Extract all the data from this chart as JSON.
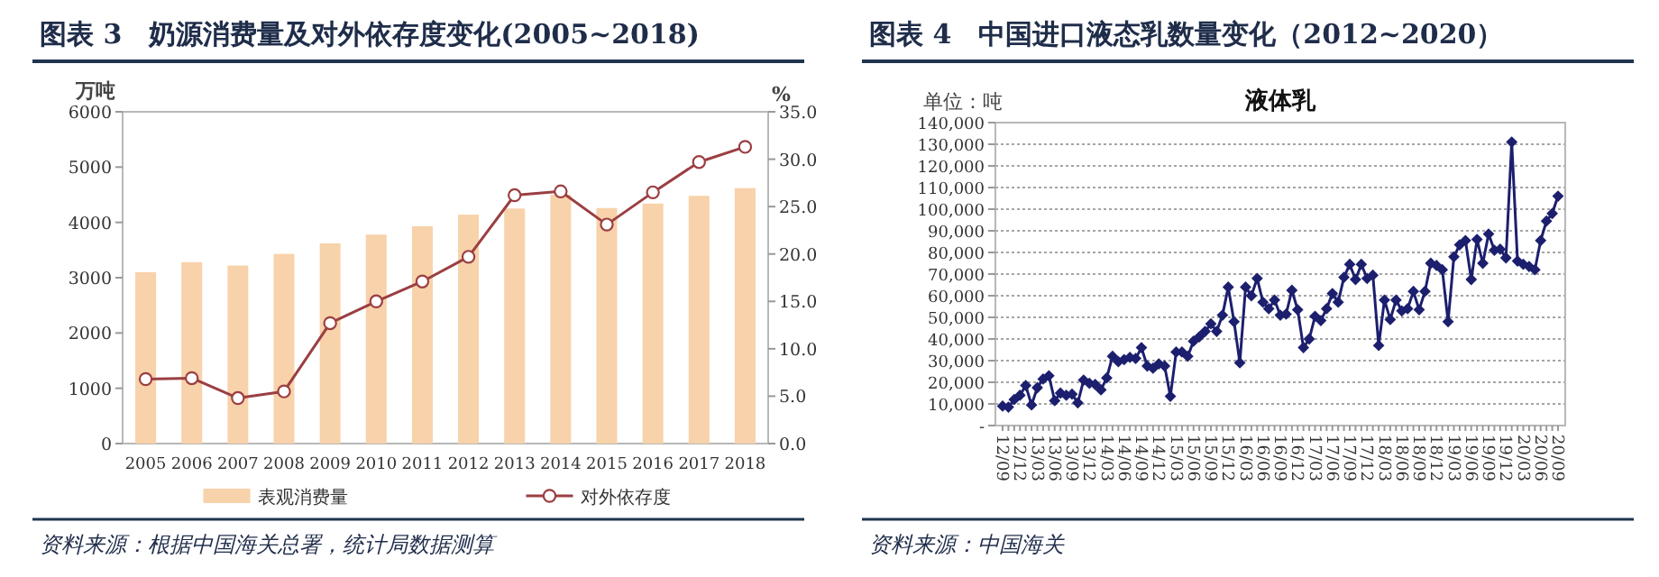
{
  "chart_data": [
    {
      "type": "bar",
      "title": "图表 3　奶源消费量及对外依存度变化(2005~2018)",
      "ylabel": "万吨",
      "y2label": "%",
      "categories": [
        "2005",
        "2006",
        "2007",
        "2008",
        "2009",
        "2010",
        "2011",
        "2012",
        "2013",
        "2014",
        "2015",
        "2016",
        "2017",
        "2018"
      ],
      "series": [
        {
          "name": "表观消费量",
          "color": "#f8d2aa",
          "values": [
            3100,
            3280,
            3220,
            3430,
            3620,
            3780,
            3930,
            4140,
            4250,
            4500,
            4260,
            4340,
            4480,
            4620
          ]
        },
        {
          "name": "对外依存度",
          "type": "line",
          "axis": "y2",
          "color": "#9b3f42",
          "marker": "circle",
          "values": [
            6.8,
            6.9,
            4.8,
            5.5,
            12.7,
            15.0,
            17.1,
            19.7,
            26.2,
            26.6,
            23.1,
            26.5,
            29.7,
            31.3
          ]
        }
      ],
      "ylim": [
        0,
        6000
      ],
      "yticks": [
        0,
        1000,
        2000,
        3000,
        4000,
        5000,
        6000
      ],
      "y2lim": [
        0,
        35
      ],
      "y2ticks": [
        {
          "value": 0,
          "label": "0.0"
        },
        {
          "value": 5,
          "label": "5.0"
        },
        {
          "value": 10,
          "label": "10.0"
        },
        {
          "value": 15,
          "label": "15.0"
        },
        {
          "value": 20,
          "label": "20.0"
        },
        {
          "value": 25,
          "label": "25.0"
        },
        {
          "value": 30,
          "label": "30.0"
        },
        {
          "value": 35,
          "label": "35.0"
        }
      ],
      "legend": "bottom",
      "annotations": [
        "资料来源：根据中国海关总署，统计局数据测算"
      ]
    },
    {
      "type": "line",
      "title": "图表 4　中国进口液态乳数量变化（2012~2020）",
      "subtitle": "液体乳",
      "ylabel": "单位：吨",
      "categories": [
        "12/09",
        null,
        null,
        "12/12",
        null,
        null,
        "13/03",
        null,
        null,
        "13/06",
        null,
        null,
        "13/09",
        null,
        null,
        "13/12",
        null,
        null,
        "14/03",
        null,
        null,
        "14/06",
        null,
        null,
        "14/09",
        null,
        null,
        "14/12",
        null,
        null,
        "15/03",
        null,
        null,
        "15/06",
        null,
        null,
        "15/09",
        null,
        null,
        "15/12",
        null,
        null,
        "16/03",
        null,
        null,
        "16/06",
        null,
        null,
        "16/09",
        null,
        null,
        "16/12",
        null,
        null,
        "17/03",
        null,
        null,
        "17/06",
        null,
        null,
        "17/09",
        null,
        null,
        "17/12",
        null,
        null,
        "18/03",
        null,
        null,
        "18/06",
        null,
        null,
        "18/09",
        null,
        null,
        "18/12",
        null,
        null,
        "19/03",
        null,
        null,
        "19/06",
        null,
        null,
        "19/09",
        null,
        null,
        "19/12",
        null,
        null,
        "20/03",
        null,
        null,
        "20/06",
        null,
        null,
        "20/09"
      ],
      "series": [
        {
          "color": "#1c1f6e",
          "values": [
            9000,
            8500,
            12000,
            14000,
            18500,
            9500,
            17500,
            21500,
            23000,
            11500,
            15000,
            14000,
            14500,
            10500,
            21000,
            19500,
            19000,
            16500,
            22000,
            32000,
            29500,
            30500,
            31500,
            31000,
            36000,
            27500,
            26500,
            28500,
            27500,
            13500,
            34000,
            34000,
            32000,
            39000,
            41000,
            43500,
            47000,
            43500,
            51000,
            64000,
            48000,
            29000,
            64000,
            60000,
            68000,
            57000,
            54000,
            58000,
            51000,
            51500,
            62500,
            53500,
            36000,
            40000,
            50500,
            48500,
            54000,
            61000,
            57000,
            68500,
            74500,
            67500,
            74500,
            68000,
            69500,
            37000,
            58000,
            49000,
            58000,
            53000,
            54000,
            62000,
            53500,
            62000,
            75000,
            74000,
            72000,
            48000,
            78000,
            83500,
            85500,
            67500,
            86000,
            75000,
            88500,
            81000,
            81500,
            77500,
            131000,
            76000,
            74500,
            73500,
            72000,
            85500,
            94500,
            98000,
            106000
          ]
        }
      ],
      "marker": "diamond",
      "ylim": [
        0,
        140000
      ],
      "yticks": [
        {
          "value": 0,
          "label": "-"
        },
        {
          "value": 10000,
          "label": "10,000"
        },
        {
          "value": 20000,
          "label": "20,000"
        },
        {
          "value": 30000,
          "label": "30,000"
        },
        {
          "value": 40000,
          "label": "40,000"
        },
        {
          "value": 50000,
          "label": "50,000"
        },
        {
          "value": 60000,
          "label": "60,000"
        },
        {
          "value": 70000,
          "label": "70,000"
        },
        {
          "value": 80000,
          "label": "80,000"
        },
        {
          "value": 90000,
          "label": "90,000"
        },
        {
          "value": 100000,
          "label": "100,000"
        },
        {
          "value": 110000,
          "label": "110,000"
        },
        {
          "value": 120000,
          "label": "120,000"
        },
        {
          "value": 130000,
          "label": "130,000"
        },
        {
          "value": 140000,
          "label": "140,000"
        }
      ],
      "grid": "y",
      "annotations": [
        "资料来源：中国海关"
      ]
    }
  ]
}
